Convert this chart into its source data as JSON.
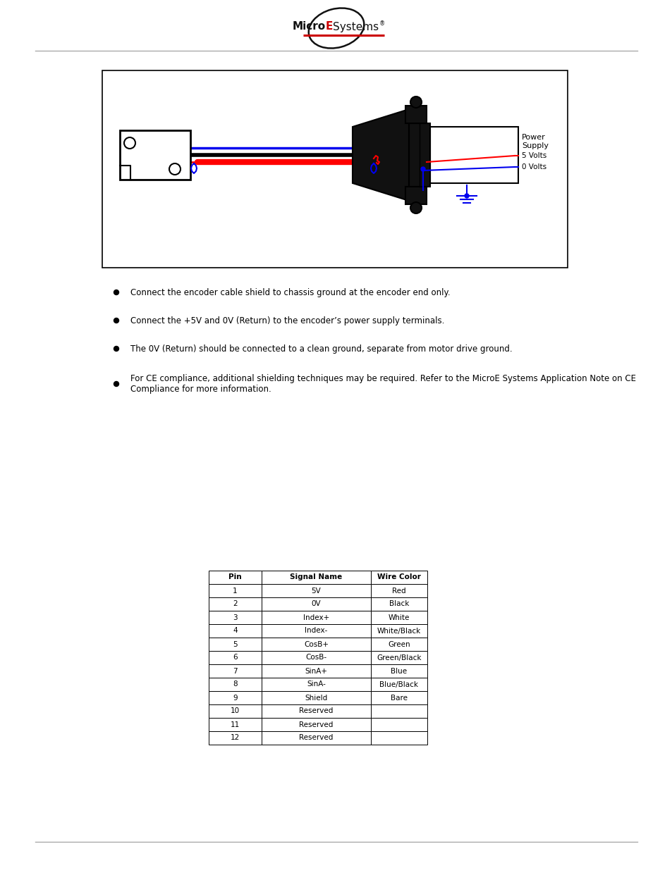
{
  "bg_color": "#ffffff",
  "header_line_color": "#888888",
  "footer_line_color": "#888888",
  "bullet_points": [
    "Connect the encoder cable shield to chassis ground at the encoder end only.",
    "Connect the +5V and 0V (Return) to the encoder’s power supply terminals.",
    "The 0V (Return) should be connected to a clean ground, separate from motor drive ground.",
    "For CE compliance, additional shielding techniques may be required. Refer to the MicroE Systems Application Note on CE Compliance for more information."
  ],
  "table_headers": [
    "Pin",
    "Signal Name",
    "Wire Color"
  ],
  "table_rows": [
    [
      "1",
      "5V",
      "Red"
    ],
    [
      "2",
      "0V",
      "Black"
    ],
    [
      "3",
      "Index+",
      "White"
    ],
    [
      "4",
      "Index-",
      "White/Black"
    ],
    [
      "5",
      "CosB+",
      "Green"
    ],
    [
      "6",
      "CosB-",
      "Green/Black"
    ],
    [
      "7",
      "SinA+",
      "Blue"
    ],
    [
      "8",
      "SinA-",
      "Blue/Black"
    ],
    [
      "9",
      "Shield",
      "Bare"
    ],
    [
      "10",
      "Reserved",
      ""
    ],
    [
      "11",
      "Reserved",
      ""
    ],
    [
      "12",
      "Reserved",
      ""
    ]
  ]
}
